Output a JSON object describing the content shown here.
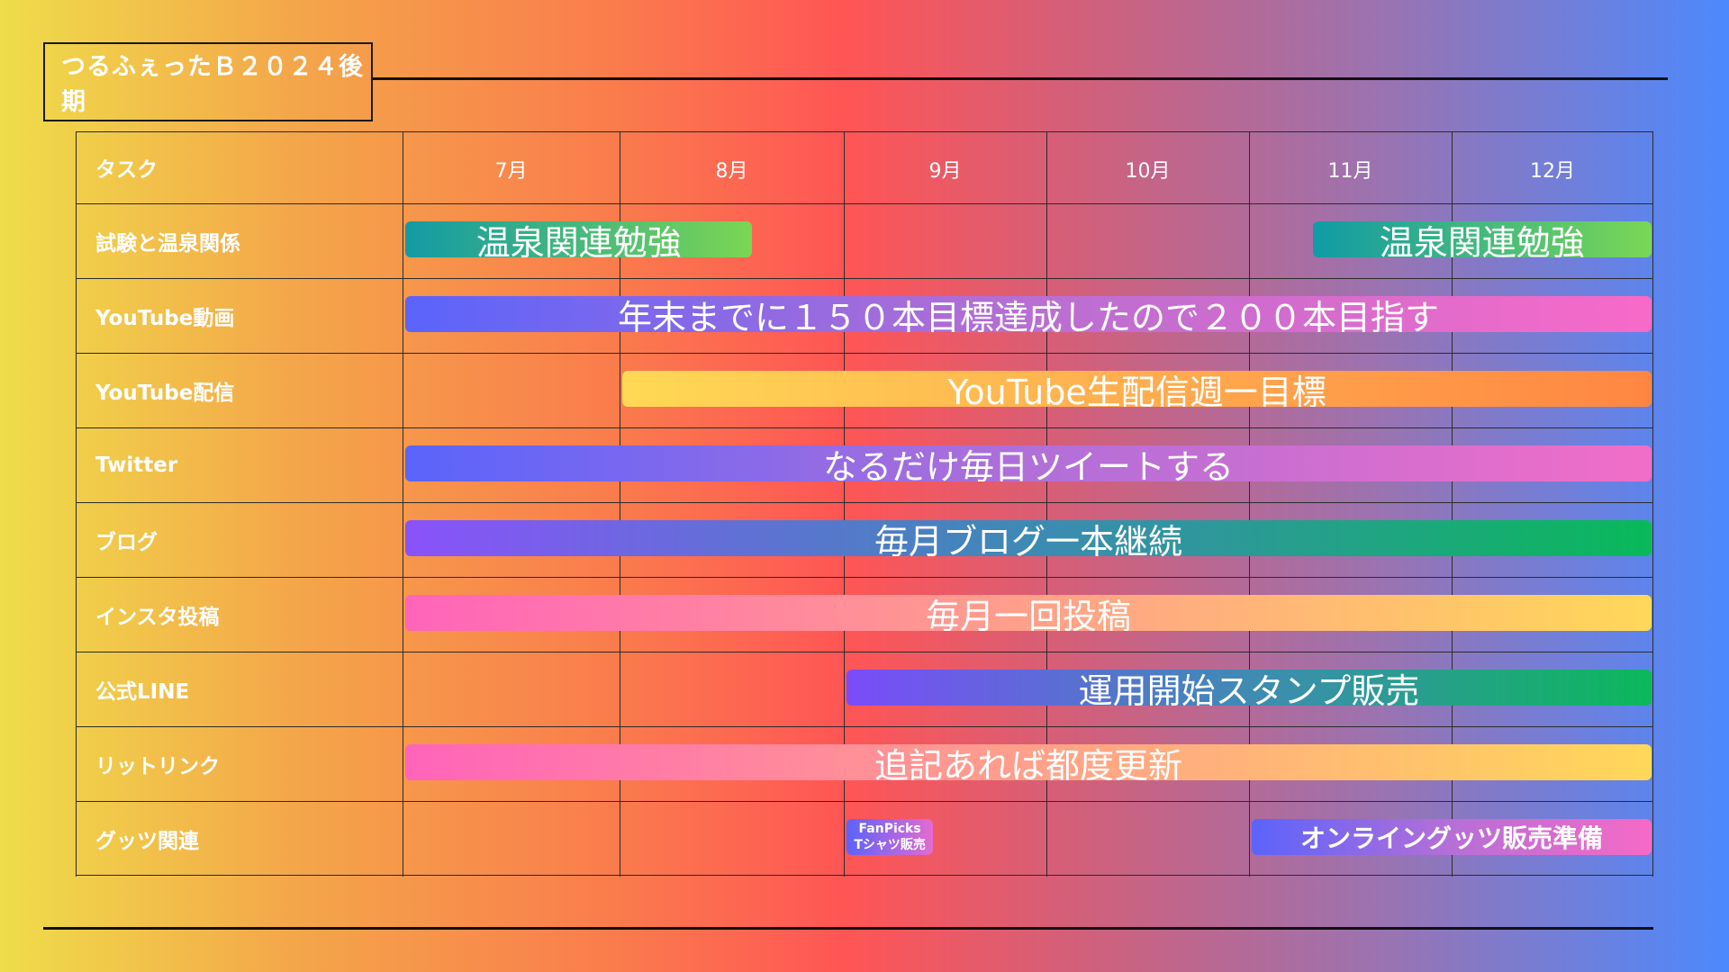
{
  "title": "つるふぇったＢ２０２４後期",
  "header": {
    "task_label": "タスク",
    "months": [
      "7月",
      "8月",
      "9月",
      "10月",
      "11月",
      "12月"
    ]
  },
  "tasks": [
    {
      "name": "試験と温泉関係",
      "bars": [
        {
          "label": "温泉関連勉強",
          "start_month": 7.0,
          "end_month": 8.6,
          "colors": [
            "#139aa5",
            "#7bd653"
          ]
        },
        {
          "label": "温泉関連勉強",
          "start_month": 11.3,
          "end_month": 13.0,
          "colors": [
            "#109ba6",
            "#7ad755"
          ]
        }
      ]
    },
    {
      "name": "YouTube動画",
      "bars": [
        {
          "label": "年末までに１５０本目標達成したので２００本目指す",
          "start_month": 7.0,
          "end_month": 13.0,
          "colors": [
            "#5a64fb",
            "#b86ed2",
            "#f86ac8"
          ]
        }
      ]
    },
    {
      "name": "YouTube配信",
      "bars": [
        {
          "label": "YouTube生配信週一目標",
          "start_month": 8.0,
          "end_month": 13.0,
          "colors": [
            "#ffd955",
            "#ffad4f",
            "#ff8642"
          ]
        }
      ]
    },
    {
      "name": "Twitter",
      "bars": [
        {
          "label": "なるだけ毎日ツイートする",
          "start_month": 7.0,
          "end_month": 13.0,
          "colors": [
            "#5a64fb",
            "#b06fd9",
            "#f16ec7"
          ]
        }
      ]
    },
    {
      "name": "ブログ",
      "bars": [
        {
          "label": "毎月ブログ一本継続",
          "start_month": 7.0,
          "end_month": 13.0,
          "colors": [
            "#8a52fa",
            "#3d8ab5",
            "#09b95a"
          ]
        }
      ]
    },
    {
      "name": "インスタ投稿",
      "bars": [
        {
          "label": "毎月一回投稿",
          "start_month": 7.0,
          "end_month": 13.0,
          "colors": [
            "#ff64ba",
            "#ffa08a",
            "#ffd859"
          ]
        }
      ]
    },
    {
      "name": "公式LINE",
      "bars": [
        {
          "label": "運用開始スタンプ販売",
          "start_month": 9.0,
          "end_month": 13.0,
          "colors": [
            "#7a4cf9",
            "#3f8bb3",
            "#0bb85b"
          ]
        }
      ]
    },
    {
      "name": "リットリンク",
      "bars": [
        {
          "label": "追記あれば都度更新",
          "start_month": 7.0,
          "end_month": 13.0,
          "colors": [
            "#ff64ba",
            "#ffa08a",
            "#ffd859"
          ]
        }
      ]
    },
    {
      "name": "グッツ関連",
      "bars": [
        {
          "label": "FanPicks\nTシャツ販売",
          "start_month": 9.0,
          "end_month": 9.45,
          "colors": [
            "#5b63fb",
            "#e46ad0"
          ],
          "small": true
        },
        {
          "label": "オンライングッツ販売準備",
          "start_month": 11.0,
          "end_month": 13.0,
          "colors": [
            "#5b63fb",
            "#b66fd7",
            "#f66ac6"
          ],
          "bold": true
        }
      ]
    }
  ]
}
